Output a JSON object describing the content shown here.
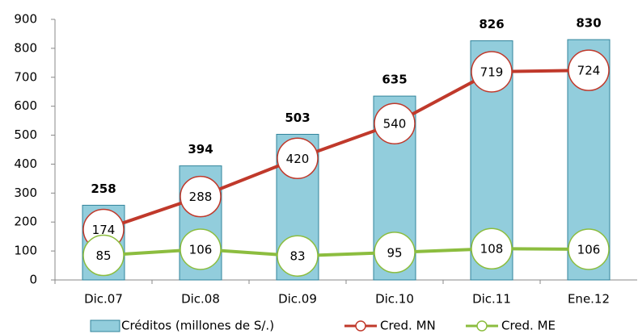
{
  "chart_data": {
    "type": "bar",
    "categories": [
      "Dic.07",
      "Dic.08",
      "Dic.09",
      "Dic.10",
      "Dic.11",
      "Ene.12"
    ],
    "series": [
      {
        "name": "Créditos (millones de S/.)",
        "type": "bar",
        "color": "#92cddc",
        "values": [
          258,
          394,
          503,
          635,
          826,
          830
        ]
      },
      {
        "name": "Cred. MN",
        "type": "line",
        "color": "#c0392b",
        "values": [
          174,
          288,
          420,
          540,
          719,
          724
        ]
      },
      {
        "name": "Cred. ME",
        "type": "line",
        "color": "#8cbd3f",
        "values": [
          85,
          106,
          83,
          95,
          108,
          106
        ]
      }
    ],
    "ylim": [
      0,
      900
    ],
    "yticks": [
      0,
      100,
      200,
      300,
      400,
      500,
      600,
      700,
      800,
      900
    ],
    "legend": "bottom"
  }
}
